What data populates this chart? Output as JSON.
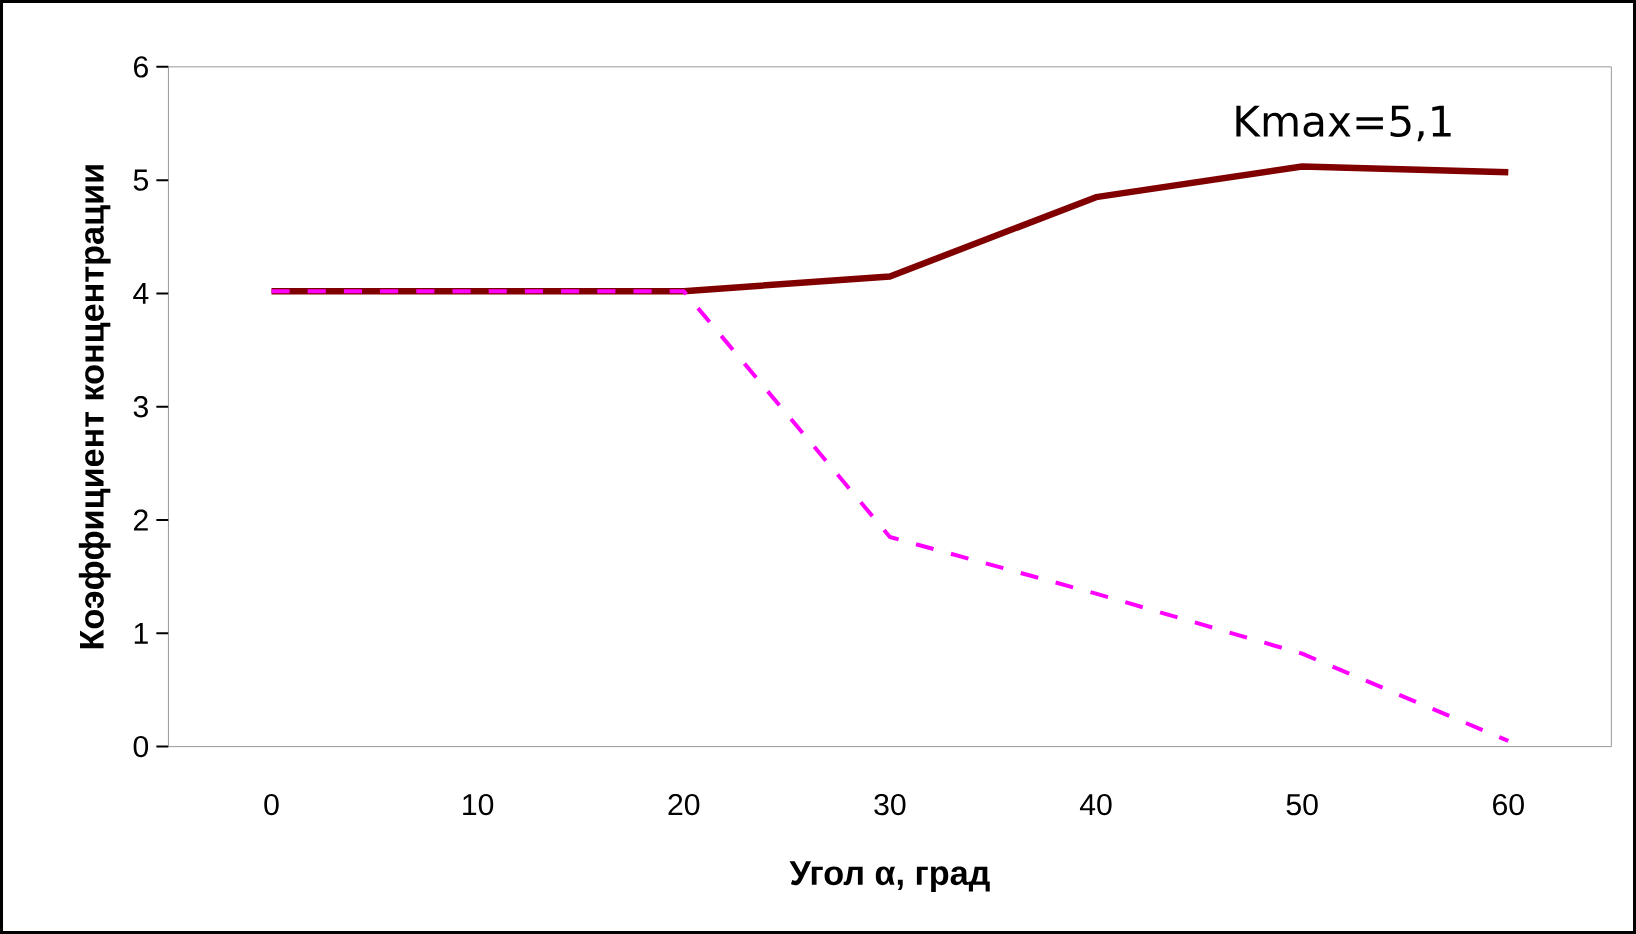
{
  "chart_data": {
    "type": "line",
    "xlabel": "Угол α, град",
    "ylabel": "Коэффициент концентрации",
    "categories": [
      "0",
      "10",
      "20",
      "30",
      "40",
      "50",
      "60"
    ],
    "ylim": [
      0,
      6
    ],
    "yticks": [
      0,
      1,
      2,
      3,
      4,
      5,
      6
    ],
    "grid": false,
    "marker": "none",
    "annotations": [
      "Kmax=5,1"
    ],
    "series": [
      {
        "color": "#800000",
        "line_style": "solid",
        "values": [
          4.02,
          4.02,
          4.02,
          4.15,
          4.85,
          5.12,
          5.07
        ]
      },
      {
        "color": "#ff00ff",
        "line_style": "dashed",
        "values": [
          4.02,
          4.02,
          4.02,
          1.85,
          1.35,
          0.82,
          0.05
        ]
      }
    ]
  }
}
